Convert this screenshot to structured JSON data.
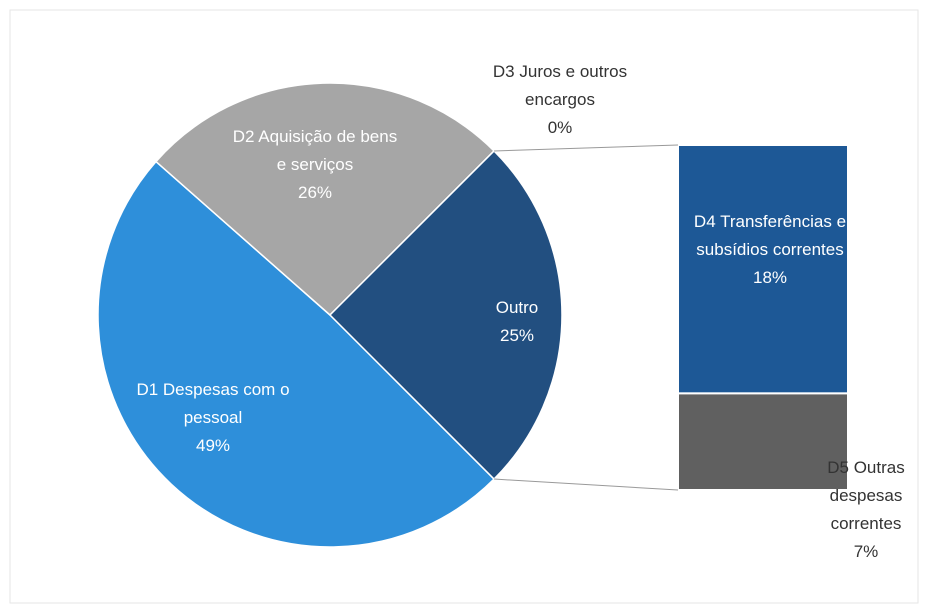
{
  "chart_data": {
    "type": "pie",
    "categories": [
      "D1 Despesas com o pessoal",
      "D2 Aquisição de bens e serviços",
      "D3 Juros e outros encargos",
      "Outro"
    ],
    "values": [
      49,
      26,
      0,
      25
    ],
    "value_labels": [
      "49%",
      "26%",
      "0%",
      "25%"
    ],
    "colors": [
      "#2e8fda",
      "#a6a6a6",
      "#7f7f7f",
      "#224f80"
    ],
    "secondary": {
      "categories": [
        "D4 Transferências e subsídios correntes",
        "D5 Outras despesas correntes"
      ],
      "values": [
        18,
        7
      ],
      "value_labels": [
        "18%",
        "7%"
      ],
      "colors": [
        "#1d5896",
        "#606060"
      ]
    }
  }
}
